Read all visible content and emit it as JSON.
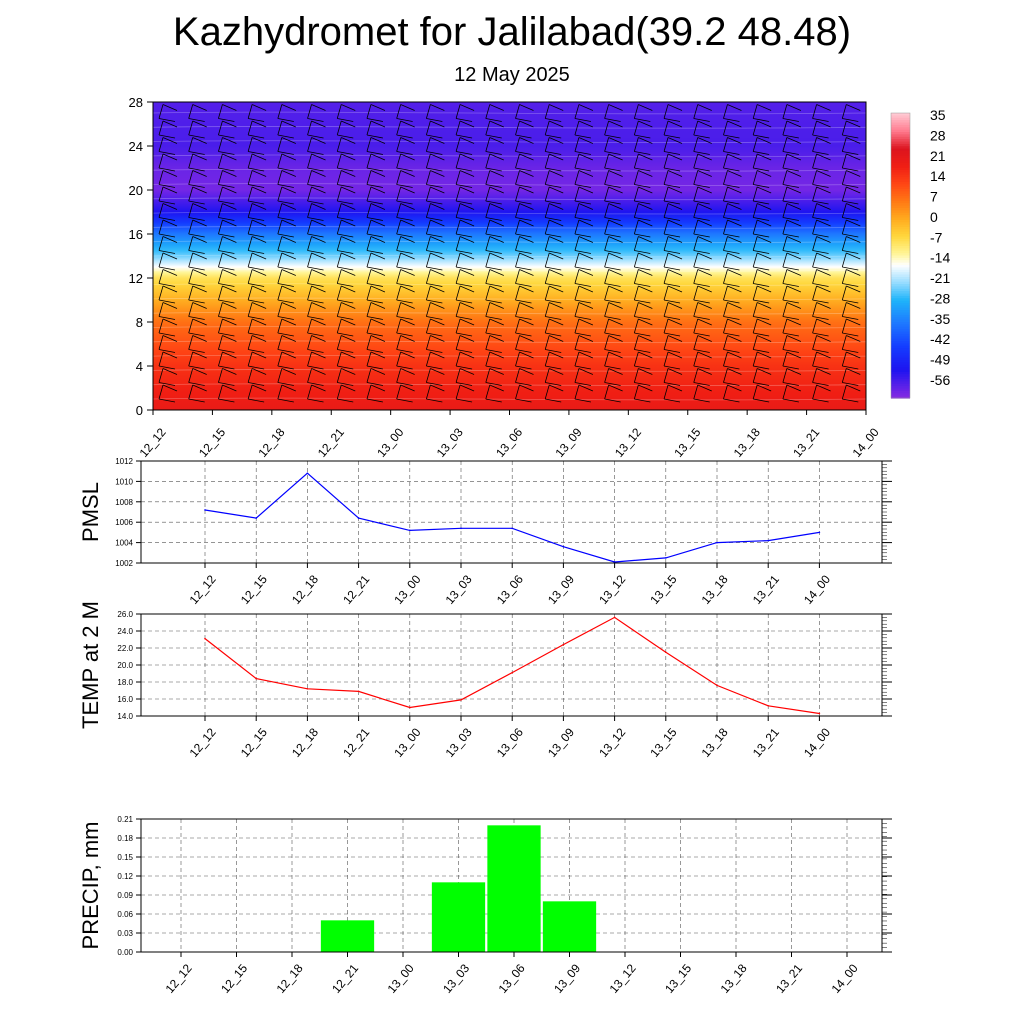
{
  "title": "Kazhydromet for Jalilabad(39.2 48.48)",
  "subtitle": "12 May 2025",
  "time_labels": [
    "12_12",
    "12_15",
    "12_18",
    "12_21",
    "13_00",
    "13_03",
    "13_06",
    "13_09",
    "13_12",
    "13_15",
    "13_18",
    "13_21",
    "14_00"
  ],
  "chart_data": [
    {
      "type": "heatmap",
      "title": "",
      "ylim": [
        0,
        28
      ],
      "y_ticks": [
        "0",
        "4",
        "8",
        "12",
        "16",
        "20",
        "24",
        "28"
      ],
      "x": [
        "12_12",
        "12_15",
        "12_18",
        "12_21",
        "13_00",
        "13_03",
        "13_06",
        "13_09",
        "13_12",
        "13_15",
        "13_18",
        "13_21",
        "14_00"
      ],
      "colorbar_labels": [
        "35",
        "28",
        "21",
        "14",
        "7",
        "0",
        "-7",
        "-14",
        "-21",
        "-28",
        "-35",
        "-42",
        "-49",
        "-56"
      ],
      "colorbar_range": [
        -60,
        38
      ],
      "temperature_by_level": [
        {
          "level": 0,
          "value": 22
        },
        {
          "level": 4,
          "value": 17
        },
        {
          "level": 8,
          "value": 9
        },
        {
          "level": 12,
          "value": -6
        },
        {
          "level": 14,
          "value": -22
        },
        {
          "level": 16,
          "value": -34
        },
        {
          "level": 18,
          "value": -50
        },
        {
          "level": 20,
          "value": -58
        },
        {
          "level": 22,
          "value": -57
        },
        {
          "level": 24,
          "value": -54
        },
        {
          "level": 28,
          "value": -55
        }
      ]
    },
    {
      "type": "line",
      "ylabel": "PMSL",
      "x": [
        "12_12",
        "12_15",
        "12_18",
        "12_21",
        "13_00",
        "13_03",
        "13_06",
        "13_09",
        "13_12",
        "13_15",
        "13_18",
        "13_21",
        "14_00"
      ],
      "values": [
        1007.2,
        1006.4,
        1010.8,
        1006.4,
        1005.2,
        1005.4,
        1005.4,
        1003.6,
        1002.1,
        1002.5,
        1004.0,
        1004.2,
        1005.0
      ],
      "ylim": [
        1002,
        1012
      ],
      "y_ticks": [
        "1002",
        "1004",
        "1006",
        "1008",
        "1010",
        "1012"
      ],
      "color": "#0000ff",
      "grid": true
    },
    {
      "type": "line",
      "ylabel": "TEMP at 2 M",
      "x": [
        "12_12",
        "12_15",
        "12_18",
        "12_21",
        "13_00",
        "13_03",
        "13_06",
        "13_09",
        "13_12",
        "13_15",
        "13_18",
        "13_21",
        "14_00"
      ],
      "values": [
        23.1,
        18.4,
        17.2,
        16.9,
        15.0,
        15.9,
        19.1,
        22.4,
        25.6,
        21.5,
        17.6,
        15.2,
        14.3
      ],
      "ylim": [
        14,
        26
      ],
      "y_ticks": [
        "14.0",
        "16.0",
        "18.0",
        "20.0",
        "22.0",
        "24.0",
        "26.0"
      ],
      "color": "#ff0000",
      "grid": true
    },
    {
      "type": "bar",
      "ylabel": "PRECIP, mm",
      "categories": [
        "12_12",
        "12_15",
        "12_18",
        "12_21",
        "13_00",
        "13_03",
        "13_06",
        "13_09",
        "13_12",
        "13_15",
        "13_18",
        "13_21",
        "14_00"
      ],
      "values": [
        0,
        0,
        0,
        0.05,
        0,
        0.11,
        0.2,
        0.08,
        0,
        0,
        0,
        0,
        0
      ],
      "ylim": [
        0,
        0.21
      ],
      "y_ticks": [
        "0.00",
        "0.03",
        "0.06",
        "0.09",
        "0.12",
        "0.15",
        "0.18",
        "0.21"
      ],
      "color": "#00ff00",
      "grid": true
    }
  ]
}
